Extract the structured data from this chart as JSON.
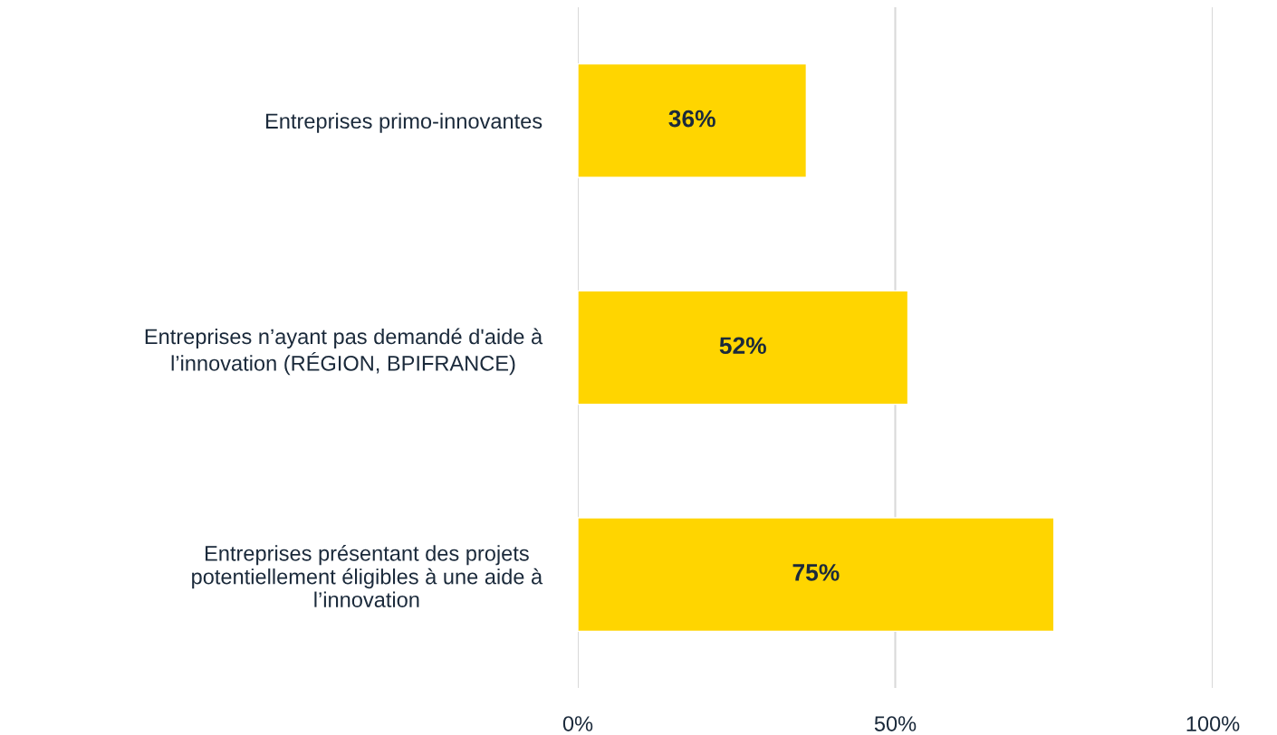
{
  "chart_data": {
    "type": "bar",
    "orientation": "horizontal",
    "categories": [
      "Entreprises primo-innovantes",
      "Entreprises n’ayant pas demandé d'aide à\nl’innovation (RÉGION, BPIFRANCE)",
      "Entreprises présentant des projets\npotentiellement éligibles à une aide à\nl’innovation"
    ],
    "values": [
      36,
      52,
      75
    ],
    "color": "#ffd500",
    "value_labels": [
      "36%",
      "52%",
      "75%"
    ],
    "xlim": [
      0,
      100
    ],
    "xticks": [
      {
        "value": 0,
        "label": "0%"
      },
      {
        "value": 50,
        "label": "50%"
      },
      {
        "value": 100,
        "label": "100%"
      }
    ],
    "grid": "x"
  }
}
